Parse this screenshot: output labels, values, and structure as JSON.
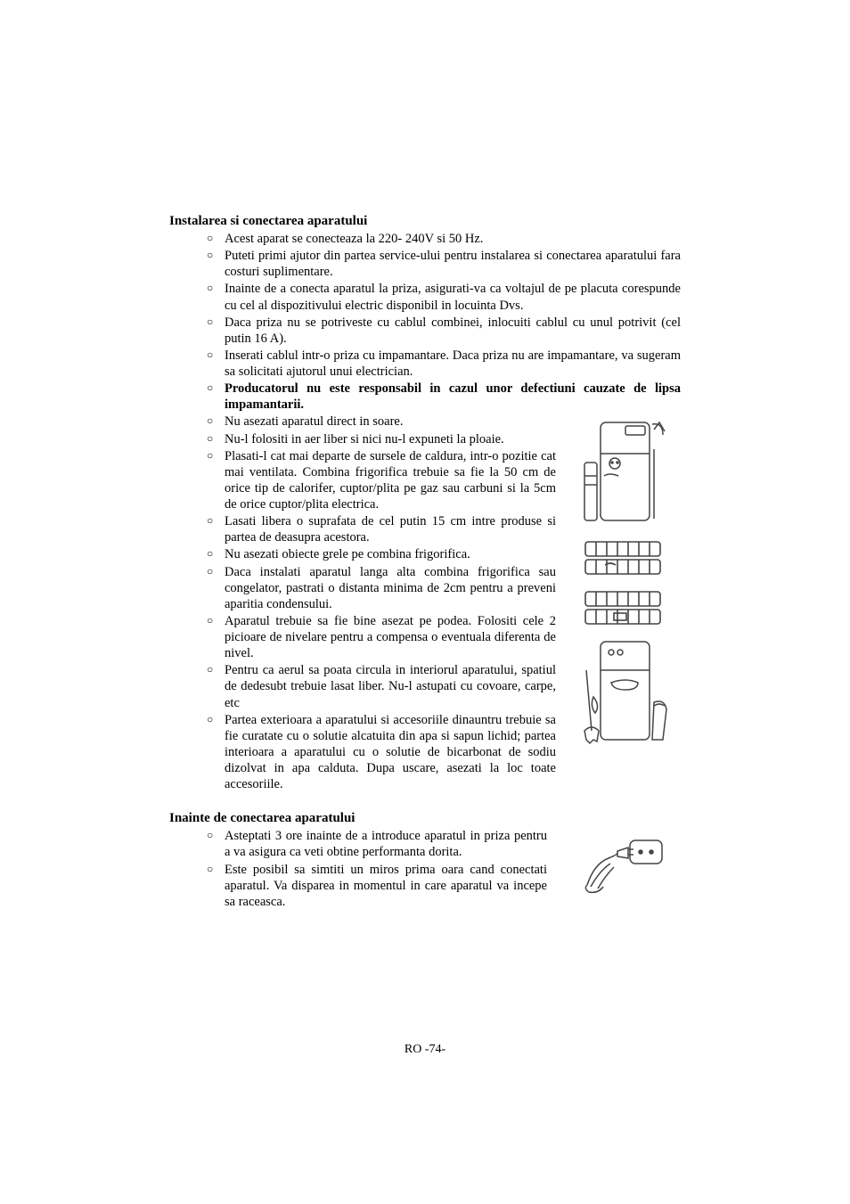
{
  "page": {
    "footer": "RO -74-"
  },
  "section1": {
    "heading": "Instalarea si conectarea aparatului",
    "items": [
      {
        "text": "Acest aparat se conecteaza la 220- 240V si 50 Hz.",
        "bold": false,
        "narrow": false
      },
      {
        "text": "Puteti primi ajutor din partea service-ului pentru instalarea si conectarea aparatului fara costuri suplimentare.",
        "bold": false,
        "narrow": false
      },
      {
        "text": "Inainte de a conecta aparatul la priza, asigurati-va ca voltajul de pe placuta corespunde cu cel al dispozitivului electric disponibil in locuinta Dvs.",
        "bold": false,
        "narrow": false
      },
      {
        "text": "Daca priza nu se potriveste cu cablul combinei, inlocuiti cablul cu unul potrivit (cel putin 16 A).",
        "bold": false,
        "narrow": false
      },
      {
        "text": "Inserati cablul intr-o priza cu impamantare. Daca priza nu are impamantare, va sugeram sa solicitati ajutorul unui electrician.",
        "bold": false,
        "narrow": false
      },
      {
        "text": "Producatorul nu este responsabil in cazul unor defectiuni cauzate de lipsa impamantarii.",
        "bold": true,
        "narrow": false
      },
      {
        "text": "Nu asezati aparatul direct in soare.",
        "bold": false,
        "narrow": true
      },
      {
        "text": "Nu-l folositi in aer liber si nici nu-l expuneti la ploaie.",
        "bold": false,
        "narrow": true
      },
      {
        "text": "Plasati-l cat mai departe de sursele de caldura, intr-o pozitie cat mai ventilata. Combina frigorifica trebuie sa fie la 50 cm de orice tip de calorifer, cuptor/plita pe gaz sau carbuni si la 5cm de orice cuptor/plita electrica.",
        "bold": false,
        "narrow": true
      },
      {
        "text": "Lasati libera o suprafata de cel putin 15 cm intre produse si partea de deasupra acestora.",
        "bold": false,
        "narrow": true
      },
      {
        "text": "Nu asezati obiecte grele pe combina frigorifica.",
        "bold": false,
        "narrow": true
      },
      {
        "text": "Daca instalati aparatul langa alta combina frigorifica sau congelator, pastrati o distanta minima de 2cm pentru a preveni aparitia condensului.",
        "bold": false,
        "narrow": true
      },
      {
        "text": "Aparatul trebuie sa fie bine asezat pe podea. Folositi cele 2 picioare de nivelare pentru a compensa o eventuala diferenta de nivel.",
        "bold": false,
        "narrow": true
      },
      {
        "text": "Pentru ca aerul sa poata circula in interiorul aparatului, spatiul de dedesubt trebuie lasat liber. Nu-l astupati cu covoare, carpe, etc",
        "bold": false,
        "narrow": true
      },
      {
        "text": "Partea exterioara a aparatului si accesoriile dinauntru trebuie sa fie curatate cu o solutie alcatuita din apa si sapun lichid; partea interioara a aparatului cu o solutie de bicarbonat de sodiu dizolvat in apa calduta. Dupa uscare, asezati la loc toate accesoriile.",
        "bold": false,
        "narrow": true
      }
    ]
  },
  "section2": {
    "heading": "Inainte de conectarea aparatului",
    "items": [
      {
        "text": "Asteptati 3 ore inainte de a introduce aparatul in priza pentru a va asigura ca veti obtine performanta dorita.",
        "bold": false
      },
      {
        "text": "Este posibil sa simtiti un miros prima oara cand conectati aparatul. Va disparea in momentul in care aparatul va incepe sa raceasca.",
        "bold": false
      }
    ]
  },
  "illustrations": {
    "stroke": "#444444",
    "fill": "#ffffff"
  }
}
